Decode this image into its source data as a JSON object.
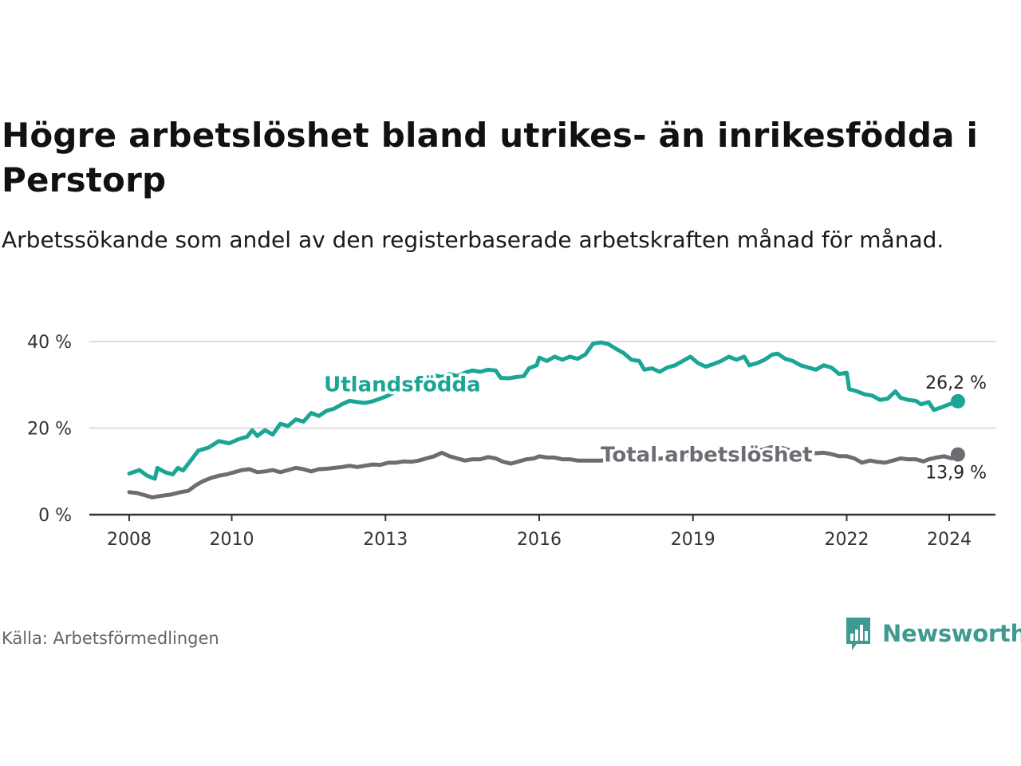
{
  "title": "Högre arbetslöshet bland utrikes- än inrikesfödda i Perstorp",
  "subtitle": "Arbetssökande som andel av den registerbaserade arbetskraften månad för månad.",
  "source": "Källa: Arbetsförmedlingen",
  "brand": {
    "name": "Newsworthy",
    "logo_icon": "bar-chart-speech-bubble-icon"
  },
  "colors": {
    "utlandsfodda": "#1aa595",
    "total": "#6d6c73",
    "grid": "#dddddd",
    "axis": "#333333"
  },
  "chart_data": {
    "type": "line",
    "title": "Högre arbetslöshet bland utrikes- än inrikesfödda i Perstorp",
    "xlabel": "",
    "ylabel": "",
    "xlim": [
      2007.9,
      2025.0
    ],
    "ylim": [
      0,
      40
    ],
    "grid": true,
    "y_ticks": [
      {
        "value": 0,
        "label": "0 %"
      },
      {
        "value": 20,
        "label": "20 %"
      },
      {
        "value": 40,
        "label": "40 %"
      }
    ],
    "x_ticks": [
      {
        "value": 2008,
        "label": "2008"
      },
      {
        "value": 2010,
        "label": "2010"
      },
      {
        "value": 2013,
        "label": "2013"
      },
      {
        "value": 2016,
        "label": "2016"
      },
      {
        "value": 2019,
        "label": "2019"
      },
      {
        "value": 2022,
        "label": "2022"
      },
      {
        "value": 2024,
        "label": "2024"
      }
    ],
    "series": [
      {
        "name": "Utlandsfödda",
        "color": "#1aa595",
        "label_at": [
          2011.8,
          28.5
        ],
        "end_label": "26,2 %",
        "points": [
          [
            2008.0,
            9.5
          ],
          [
            2008.2,
            10.3
          ],
          [
            2008.35,
            9.0
          ],
          [
            2008.5,
            8.3
          ],
          [
            2008.55,
            10.8
          ],
          [
            2008.7,
            9.8
          ],
          [
            2008.85,
            9.3
          ],
          [
            2008.95,
            10.8
          ],
          [
            2009.05,
            10.2
          ],
          [
            2009.2,
            12.5
          ],
          [
            2009.35,
            14.8
          ],
          [
            2009.55,
            15.5
          ],
          [
            2009.75,
            17.0
          ],
          [
            2009.95,
            16.5
          ],
          [
            2010.15,
            17.5
          ],
          [
            2010.3,
            18.0
          ],
          [
            2010.4,
            19.5
          ],
          [
            2010.5,
            18.2
          ],
          [
            2010.65,
            19.5
          ],
          [
            2010.8,
            18.5
          ],
          [
            2010.95,
            21.0
          ],
          [
            2011.1,
            20.5
          ],
          [
            2011.25,
            22.0
          ],
          [
            2011.4,
            21.5
          ],
          [
            2011.55,
            23.5
          ],
          [
            2011.7,
            22.8
          ],
          [
            2011.85,
            24.0
          ],
          [
            2012.0,
            24.5
          ],
          [
            2012.15,
            25.5
          ],
          [
            2012.3,
            26.3
          ],
          [
            2012.45,
            26.0
          ],
          [
            2012.6,
            25.8
          ],
          [
            2012.75,
            26.2
          ],
          [
            2012.9,
            26.8
          ],
          [
            2013.05,
            27.5
          ],
          [
            2013.2,
            28.5
          ],
          [
            2013.4,
            29.5
          ],
          [
            2013.6,
            30.5
          ],
          [
            2013.8,
            31.5
          ],
          [
            2013.95,
            32.2
          ],
          [
            2014.1,
            31.8
          ],
          [
            2014.25,
            32.5
          ],
          [
            2014.4,
            32.0
          ],
          [
            2014.55,
            32.8
          ],
          [
            2014.7,
            33.3
          ],
          [
            2014.85,
            33.0
          ],
          [
            2015.0,
            33.5
          ],
          [
            2015.15,
            33.3
          ],
          [
            2015.25,
            31.6
          ],
          [
            2015.4,
            31.5
          ],
          [
            2015.55,
            31.8
          ],
          [
            2015.7,
            32.0
          ],
          [
            2015.8,
            33.8
          ],
          [
            2015.95,
            34.5
          ],
          [
            2016.0,
            36.3
          ],
          [
            2016.15,
            35.5
          ],
          [
            2016.3,
            36.5
          ],
          [
            2016.45,
            35.8
          ],
          [
            2016.6,
            36.5
          ],
          [
            2016.75,
            36.0
          ],
          [
            2016.9,
            37.0
          ],
          [
            2017.05,
            39.5
          ],
          [
            2017.2,
            39.8
          ],
          [
            2017.35,
            39.4
          ],
          [
            2017.5,
            38.3
          ],
          [
            2017.65,
            37.3
          ],
          [
            2017.8,
            35.8
          ],
          [
            2017.95,
            35.5
          ],
          [
            2018.05,
            33.5
          ],
          [
            2018.2,
            33.8
          ],
          [
            2018.35,
            33.0
          ],
          [
            2018.5,
            34.0
          ],
          [
            2018.65,
            34.5
          ],
          [
            2018.8,
            35.5
          ],
          [
            2018.95,
            36.5
          ],
          [
            2019.1,
            35.0
          ],
          [
            2019.25,
            34.2
          ],
          [
            2019.4,
            34.8
          ],
          [
            2019.55,
            35.5
          ],
          [
            2019.7,
            36.5
          ],
          [
            2019.85,
            35.8
          ],
          [
            2020.0,
            36.5
          ],
          [
            2020.1,
            34.5
          ],
          [
            2020.25,
            35.0
          ],
          [
            2020.4,
            35.8
          ],
          [
            2020.55,
            37.0
          ],
          [
            2020.65,
            37.2
          ],
          [
            2020.8,
            36.0
          ],
          [
            2020.95,
            35.5
          ],
          [
            2021.1,
            34.5
          ],
          [
            2021.25,
            34.0
          ],
          [
            2021.4,
            33.5
          ],
          [
            2021.55,
            34.5
          ],
          [
            2021.7,
            34.0
          ],
          [
            2021.85,
            32.5
          ],
          [
            2022.0,
            32.8
          ],
          [
            2022.05,
            29.0
          ],
          [
            2022.2,
            28.5
          ],
          [
            2022.35,
            27.8
          ],
          [
            2022.5,
            27.5
          ],
          [
            2022.65,
            26.5
          ],
          [
            2022.8,
            26.8
          ],
          [
            2022.95,
            28.5
          ],
          [
            2023.05,
            27.0
          ],
          [
            2023.2,
            26.5
          ],
          [
            2023.35,
            26.3
          ],
          [
            2023.45,
            25.5
          ],
          [
            2023.6,
            26.0
          ],
          [
            2023.7,
            24.2
          ],
          [
            2023.85,
            24.8
          ],
          [
            2024.0,
            25.5
          ],
          [
            2024.1,
            25.8
          ],
          [
            2024.17,
            26.2
          ]
        ]
      },
      {
        "name": "Total arbetslöshet",
        "color": "#6d6c73",
        "label_at": [
          2017.2,
          12.3
        ],
        "end_label": "13,9 %",
        "points": [
          [
            2008.0,
            5.2
          ],
          [
            2008.15,
            5.0
          ],
          [
            2008.3,
            4.5
          ],
          [
            2008.45,
            4.0
          ],
          [
            2008.6,
            4.3
          ],
          [
            2008.8,
            4.6
          ],
          [
            2009.0,
            5.2
          ],
          [
            2009.15,
            5.5
          ],
          [
            2009.3,
            6.8
          ],
          [
            2009.45,
            7.8
          ],
          [
            2009.6,
            8.5
          ],
          [
            2009.75,
            9.0
          ],
          [
            2009.9,
            9.3
          ],
          [
            2010.05,
            9.8
          ],
          [
            2010.2,
            10.3
          ],
          [
            2010.35,
            10.5
          ],
          [
            2010.5,
            9.8
          ],
          [
            2010.65,
            10.0
          ],
          [
            2010.8,
            10.3
          ],
          [
            2010.95,
            9.8
          ],
          [
            2011.1,
            10.3
          ],
          [
            2011.25,
            10.8
          ],
          [
            2011.4,
            10.5
          ],
          [
            2011.55,
            10.0
          ],
          [
            2011.7,
            10.5
          ],
          [
            2011.85,
            10.6
          ],
          [
            2012.0,
            10.8
          ],
          [
            2012.15,
            11.0
          ],
          [
            2012.3,
            11.3
          ],
          [
            2012.45,
            11.0
          ],
          [
            2012.6,
            11.3
          ],
          [
            2012.75,
            11.6
          ],
          [
            2012.9,
            11.5
          ],
          [
            2013.05,
            12.0
          ],
          [
            2013.2,
            12.0
          ],
          [
            2013.35,
            12.3
          ],
          [
            2013.5,
            12.2
          ],
          [
            2013.65,
            12.5
          ],
          [
            2013.8,
            13.0
          ],
          [
            2013.95,
            13.5
          ],
          [
            2014.1,
            14.3
          ],
          [
            2014.25,
            13.5
          ],
          [
            2014.4,
            13.0
          ],
          [
            2014.55,
            12.5
          ],
          [
            2014.7,
            12.8
          ],
          [
            2014.85,
            12.8
          ],
          [
            2015.0,
            13.3
          ],
          [
            2015.15,
            13.0
          ],
          [
            2015.3,
            12.2
          ],
          [
            2015.45,
            11.8
          ],
          [
            2015.6,
            12.3
          ],
          [
            2015.75,
            12.8
          ],
          [
            2015.9,
            13.0
          ],
          [
            2016.0,
            13.5
          ],
          [
            2016.15,
            13.2
          ],
          [
            2016.3,
            13.2
          ],
          [
            2016.45,
            12.8
          ],
          [
            2016.6,
            12.8
          ],
          [
            2016.75,
            12.5
          ],
          [
            2016.9,
            12.5
          ],
          [
            2017.05,
            12.5
          ],
          [
            2017.2,
            12.5
          ],
          [
            2017.35,
            12.6
          ],
          [
            2017.5,
            12.7
          ],
          [
            2017.65,
            12.8
          ],
          [
            2017.8,
            12.8
          ],
          [
            2017.95,
            12.6
          ],
          [
            2018.1,
            12.6
          ],
          [
            2018.25,
            12.8
          ],
          [
            2018.4,
            13.0
          ],
          [
            2018.55,
            13.2
          ],
          [
            2018.7,
            13.5
          ],
          [
            2018.85,
            13.8
          ],
          [
            2019.0,
            14.0
          ],
          [
            2019.15,
            14.1
          ],
          [
            2019.3,
            14.2
          ],
          [
            2019.45,
            14.3
          ],
          [
            2019.6,
            14.3
          ],
          [
            2019.75,
            14.4
          ],
          [
            2019.9,
            14.5
          ],
          [
            2020.05,
            14.6
          ],
          [
            2020.2,
            14.8
          ],
          [
            2020.35,
            15.0
          ],
          [
            2020.5,
            15.5
          ],
          [
            2020.65,
            15.8
          ],
          [
            2020.8,
            15.2
          ],
          [
            2020.95,
            14.5
          ],
          [
            2021.1,
            14.8
          ],
          [
            2021.25,
            14.5
          ],
          [
            2021.4,
            14.2
          ],
          [
            2021.55,
            14.3
          ],
          [
            2021.7,
            14.0
          ],
          [
            2021.85,
            13.5
          ],
          [
            2022.0,
            13.5
          ],
          [
            2022.15,
            13.0
          ],
          [
            2022.3,
            12.0
          ],
          [
            2022.45,
            12.5
          ],
          [
            2022.6,
            12.2
          ],
          [
            2022.75,
            12.0
          ],
          [
            2022.9,
            12.5
          ],
          [
            2023.05,
            13.0
          ],
          [
            2023.2,
            12.8
          ],
          [
            2023.35,
            12.8
          ],
          [
            2023.5,
            12.3
          ],
          [
            2023.6,
            12.8
          ],
          [
            2023.75,
            13.2
          ],
          [
            2023.9,
            13.5
          ],
          [
            2024.05,
            13.0
          ],
          [
            2024.17,
            13.9
          ]
        ]
      }
    ]
  }
}
